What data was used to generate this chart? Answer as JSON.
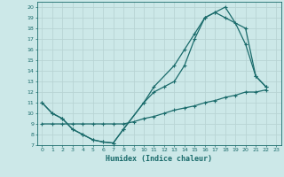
{
  "xlabel": "Humidex (Indice chaleur)",
  "bg_color": "#cce8e8",
  "line_color": "#1a6b6b",
  "grid_color": "#b8d4d4",
  "xlim": [
    -0.5,
    23.5
  ],
  "ylim": [
    7,
    20.5
  ],
  "xticks": [
    0,
    1,
    2,
    3,
    4,
    5,
    6,
    7,
    8,
    9,
    10,
    11,
    12,
    13,
    14,
    15,
    16,
    17,
    18,
    19,
    20,
    21,
    22,
    23
  ],
  "yticks": [
    7,
    8,
    9,
    10,
    11,
    12,
    13,
    14,
    15,
    16,
    17,
    18,
    19,
    20
  ],
  "line1_x": [
    0,
    1,
    2,
    3,
    4,
    5,
    6,
    7,
    8,
    10,
    11,
    13,
    14,
    15,
    16,
    17,
    18,
    19,
    20,
    21,
    22
  ],
  "line1_y": [
    11,
    10,
    9.5,
    8.5,
    8,
    7.5,
    7.3,
    7.2,
    8.5,
    11,
    12.5,
    14.5,
    16,
    17.5,
    19,
    19.5,
    20,
    18.5,
    16.5,
    13.5,
    12.5
  ],
  "line2_x": [
    0,
    1,
    2,
    3,
    4,
    5,
    6,
    7,
    8,
    10,
    11,
    12,
    13,
    14,
    15,
    16,
    17,
    18,
    20,
    21,
    22
  ],
  "line2_y": [
    11,
    10,
    9.5,
    8.5,
    8,
    7.5,
    7.3,
    7.2,
    8.5,
    11,
    12,
    12.5,
    13,
    14.5,
    17,
    19,
    19.5,
    19,
    18,
    13.5,
    12.5
  ],
  "line3_x": [
    0,
    1,
    2,
    3,
    4,
    5,
    6,
    7,
    8,
    9,
    10,
    11,
    12,
    13,
    14,
    15,
    16,
    17,
    18,
    19,
    20,
    21,
    22
  ],
  "line3_y": [
    9,
    9,
    9,
    9,
    9,
    9,
    9,
    9,
    9,
    9.2,
    9.5,
    9.7,
    10,
    10.3,
    10.5,
    10.7,
    11,
    11.2,
    11.5,
    11.7,
    12,
    12,
    12.2
  ]
}
